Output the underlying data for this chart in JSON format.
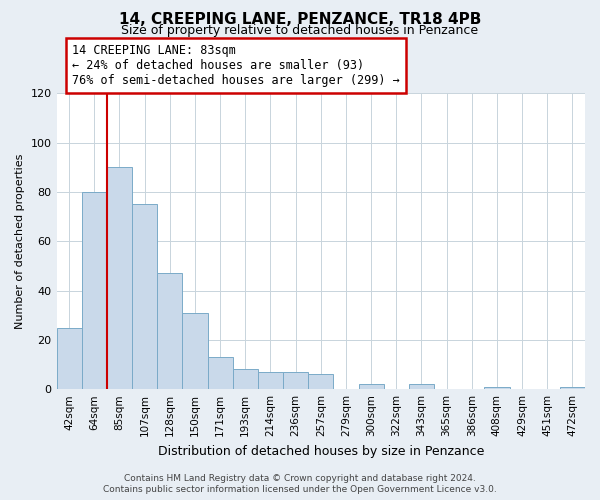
{
  "title": "14, CREEPING LANE, PENZANCE, TR18 4PB",
  "subtitle": "Size of property relative to detached houses in Penzance",
  "xlabel": "Distribution of detached houses by size in Penzance",
  "ylabel": "Number of detached properties",
  "bar_labels": [
    "42sqm",
    "64sqm",
    "85sqm",
    "107sqm",
    "128sqm",
    "150sqm",
    "171sqm",
    "193sqm",
    "214sqm",
    "236sqm",
    "257sqm",
    "279sqm",
    "300sqm",
    "322sqm",
    "343sqm",
    "365sqm",
    "386sqm",
    "408sqm",
    "429sqm",
    "451sqm",
    "472sqm"
  ],
  "bar_values": [
    25,
    80,
    90,
    75,
    47,
    31,
    13,
    8,
    7,
    7,
    6,
    0,
    2,
    0,
    2,
    0,
    0,
    1,
    0,
    0,
    1
  ],
  "bar_color": "#c9d9ea",
  "bar_edge_color": "#7aaac8",
  "marker_index": 2,
  "marker_color": "#cc0000",
  "ylim": [
    0,
    120
  ],
  "yticks": [
    0,
    20,
    40,
    60,
    80,
    100,
    120
  ],
  "annotation_lines": [
    "14 CREEPING LANE: 83sqm",
    "← 24% of detached houses are smaller (93)",
    "76% of semi-detached houses are larger (299) →"
  ],
  "annotation_box_facecolor": "#ffffff",
  "annotation_box_edgecolor": "#cc0000",
  "footer_line1": "Contains HM Land Registry data © Crown copyright and database right 2024.",
  "footer_line2": "Contains public sector information licensed under the Open Government Licence v3.0.",
  "background_color": "#e8eef4",
  "plot_bg_color": "#ffffff",
  "grid_color": "#c8d4dc",
  "title_fontsize": 11,
  "subtitle_fontsize": 9,
  "ylabel_fontsize": 8,
  "xlabel_fontsize": 9,
  "tick_fontsize": 8,
  "xtick_fontsize": 7.5,
  "ann_fontsize": 8.5,
  "footer_fontsize": 6.5
}
